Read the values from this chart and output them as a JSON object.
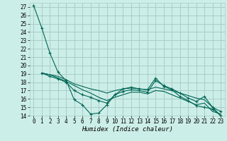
{
  "title": "",
  "xlabel": "Humidex (Indice chaleur)",
  "bg_color": "#cceee8",
  "grid_color": "#aaccc8",
  "line_color": "#006655",
  "xlim": [
    -0.5,
    23.5
  ],
  "ylim": [
    14,
    27.5
  ],
  "xticks": [
    0,
    1,
    2,
    3,
    4,
    5,
    6,
    7,
    8,
    9,
    10,
    11,
    12,
    13,
    14,
    15,
    16,
    17,
    18,
    19,
    20,
    21,
    22,
    23
  ],
  "yticks": [
    14,
    15,
    16,
    17,
    18,
    19,
    20,
    21,
    22,
    23,
    24,
    25,
    26,
    27
  ],
  "series": [
    {
      "x": [
        0,
        1,
        2,
        3,
        4,
        5,
        6,
        7,
        8,
        9,
        10,
        11,
        12,
        13,
        14,
        15,
        16,
        17,
        18,
        19,
        20,
        21,
        22,
        23
      ],
      "y": [
        27.2,
        24.5,
        21.5,
        19.2,
        18.2,
        15.9,
        15.3,
        14.2,
        14.3,
        15.3,
        16.5,
        17.2,
        17.4,
        17.2,
        17.1,
        18.5,
        17.5,
        17.1,
        16.3,
        15.8,
        15.2,
        15.0,
        14.8,
        14.0
      ],
      "marker": true
    },
    {
      "x": [
        1,
        2,
        3,
        4,
        5,
        6,
        7,
        8,
        9,
        10,
        11,
        12,
        13,
        14,
        15,
        16,
        17,
        18,
        19,
        20,
        21,
        22,
        23
      ],
      "y": [
        19.1,
        18.9,
        18.7,
        18.3,
        17.8,
        17.5,
        17.2,
        17.0,
        16.7,
        17.0,
        17.2,
        17.3,
        17.2,
        17.1,
        17.4,
        17.2,
        17.0,
        16.7,
        16.4,
        16.1,
        15.9,
        15.0,
        14.0
      ],
      "marker": false
    },
    {
      "x": [
        1,
        2,
        3,
        4,
        5,
        6,
        7,
        8,
        9,
        10,
        11,
        12,
        13,
        14,
        15,
        16,
        17,
        18,
        19,
        20,
        21,
        22,
        23
      ],
      "y": [
        19.1,
        18.7,
        18.4,
        18.0,
        17.0,
        16.5,
        16.2,
        15.8,
        15.5,
        16.5,
        16.9,
        17.1,
        17.0,
        16.8,
        18.2,
        17.6,
        17.2,
        16.7,
        16.1,
        15.7,
        16.3,
        15.0,
        14.5
      ],
      "marker": true
    },
    {
      "x": [
        1,
        2,
        3,
        4,
        5,
        6,
        7,
        8,
        9,
        10,
        11,
        12,
        13,
        14,
        15,
        16,
        17,
        18,
        19,
        20,
        21,
        22,
        23
      ],
      "y": [
        19.1,
        18.9,
        18.5,
        18.1,
        17.6,
        17.1,
        16.7,
        16.2,
        15.8,
        16.2,
        16.5,
        16.8,
        16.8,
        16.6,
        17.0,
        16.9,
        16.5,
        16.1,
        15.7,
        15.3,
        15.5,
        14.5,
        14.2
      ],
      "marker": false
    }
  ],
  "xlabel_fontsize": 6.5,
  "tick_fontsize": 5.5
}
